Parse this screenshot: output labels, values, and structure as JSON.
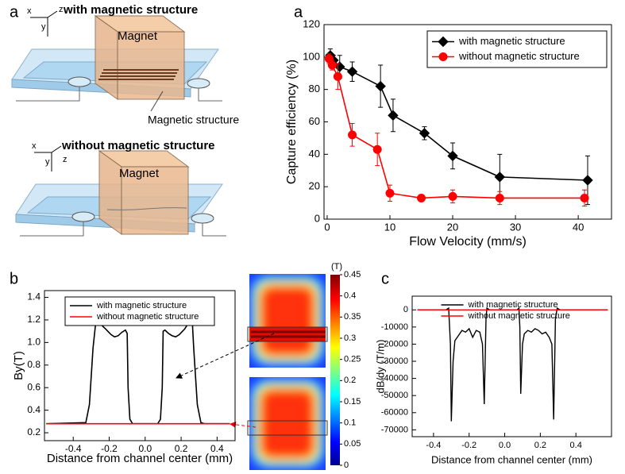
{
  "schematic": {
    "panel_label": "a",
    "devices": [
      {
        "title": "with magnetic structure",
        "magnet": "Magnet",
        "structure": "Magnetic structure",
        "axes": [
          "x",
          "y",
          "z"
        ]
      },
      {
        "title": "without magnetic structure",
        "magnet": "Magnet",
        "axes": [
          "x",
          "y",
          "z"
        ]
      }
    ]
  },
  "chart_data": [
    {
      "type": "line",
      "panel_label": "a",
      "xlabel": "Flow Velocity (mm/s)",
      "ylabel": "Capture efficiency (%)",
      "xlim": [
        -0.5,
        45.3
      ],
      "ylim": [
        0,
        120
      ],
      "xticks": [
        0,
        10,
        20,
        30,
        40
      ],
      "yticks": [
        0,
        20,
        40,
        60,
        80,
        100,
        120
      ],
      "legend": "upper right",
      "series": [
        {
          "name": "with magnetic structure",
          "color": "#000000",
          "marker": "diamond",
          "x": [
            0.5,
            1,
            2,
            4,
            8.5,
            10.5,
            15.5,
            20,
            27.5,
            41.5
          ],
          "values": [
            101,
            98,
            94,
            91,
            82,
            64,
            53,
            39,
            26,
            24
          ],
          "errors": [
            4,
            3,
            7,
            6,
            13,
            10,
            4,
            8,
            14,
            15
          ]
        },
        {
          "name": "without magnetic structure",
          "color": "#ff0000",
          "marker": "circle",
          "x": [
            0.3,
            0.8,
            1.7,
            4,
            8,
            10,
            15,
            20,
            27.5,
            41
          ],
          "values": [
            99,
            95,
            88,
            52,
            43,
            16,
            13,
            14,
            13,
            13
          ],
          "errors": [
            3,
            3,
            8,
            7,
            10,
            5,
            2,
            4,
            4,
            5
          ]
        }
      ]
    },
    {
      "type": "line",
      "panel_label": "b",
      "xlabel": "Distance from channel center (mm)",
      "ylabel": "By(T)",
      "xlim": [
        -0.56,
        0.5
      ],
      "ylim": [
        0.13,
        1.46
      ],
      "xticks": [
        -0.4,
        -0.2,
        {
          "value": 0,
          "label": "0.0"
        },
        0.2,
        0.4
      ],
      "yticks": [
        0.2,
        0.4,
        0.6,
        0.8,
        {
          "value": 1,
          "label": "1.0"
        },
        1.2,
        1.4
      ],
      "legend": "upper center",
      "colorbar": {
        "label": "(T)",
        "lim": [
          0,
          0.45
        ],
        "ticks": [
          0,
          0.05,
          0.1,
          0.15,
          0.2,
          0.25,
          0.3,
          0.35,
          0.4,
          0.45
        ]
      },
      "series": [
        {
          "name": "with magnetic structure",
          "color": "#000000",
          "x": [
            -0.55,
            -0.33,
            -0.31,
            -0.29,
            -0.27,
            -0.26,
            -0.24,
            -0.22,
            -0.19,
            -0.17,
            -0.15,
            -0.13,
            -0.11,
            -0.1,
            -0.095,
            -0.085,
            -0.07,
            0,
            0.07,
            0.085,
            0.095,
            0.1,
            0.11,
            0.13,
            0.15,
            0.17,
            0.19,
            0.22,
            0.24,
            0.26,
            0.27,
            0.29,
            0.31,
            0.33,
            0.47
          ],
          "values": [
            0.28,
            0.29,
            0.45,
            0.95,
            1.25,
            1.18,
            1.15,
            1.12,
            1.07,
            1.05,
            1.06,
            1.09,
            1.11,
            1.08,
            0.6,
            0.32,
            0.28,
            0.28,
            0.28,
            0.32,
            0.6,
            1.1,
            1.11,
            1.08,
            1.06,
            1.05,
            1.07,
            1.12,
            1.17,
            1.25,
            0.95,
            0.45,
            0.29,
            0.28,
            0.28
          ]
        },
        {
          "name": "without magnetic structure",
          "color": "#ff0000",
          "x": [
            -0.55,
            0.47
          ],
          "values": [
            0.28,
            0.28
          ]
        }
      ]
    },
    {
      "type": "line",
      "panel_label": "c",
      "xlabel": "Distance from channel center (mm)",
      "ylabel": "dB/dy (T/m)",
      "xlim": [
        -0.52,
        0.6
      ],
      "ylim": [
        -74000,
        8000
      ],
      "xticks": [
        -0.4,
        -0.2,
        {
          "value": 0,
          "label": "0.0"
        },
        0.2,
        0.4
      ],
      "yticks": [
        0,
        -10000,
        -20000,
        -30000,
        -40000,
        -50000,
        -60000,
        -70000
      ],
      "legend": "upper center",
      "series": [
        {
          "name": "with magnetic structure",
          "color": "#000000",
          "x": [
            -0.49,
            -0.33,
            -0.315,
            -0.305,
            -0.3,
            -0.29,
            -0.28,
            -0.26,
            -0.24,
            -0.22,
            -0.2,
            -0.18,
            -0.16,
            -0.14,
            -0.125,
            -0.115,
            -0.105,
            -0.1,
            -0.085,
            0.07,
            0.08,
            0.085,
            0.09,
            0.1,
            0.11,
            0.13,
            0.15,
            0.17,
            0.19,
            0.21,
            0.23,
            0.25,
            0.265,
            0.275,
            0.285,
            0.295,
            0.31,
            0.58
          ],
          "values": [
            0,
            0,
            1000,
            -20000,
            -65000,
            -30000,
            -18000,
            -15000,
            -12000,
            -13000,
            -11000,
            -16000,
            -12000,
            -13000,
            -20000,
            -55000,
            -5000,
            1000,
            0,
            0,
            1000,
            -10000,
            -49000,
            -20000,
            -14000,
            -12000,
            -13000,
            -11000,
            -12000,
            -14000,
            -13000,
            -16000,
            -20000,
            -64000,
            -5000,
            1000,
            0,
            0
          ]
        },
        {
          "name": "without magnetic structure",
          "color": "#ff0000",
          "x": [
            -0.49,
            0.58
          ],
          "values": [
            0,
            0
          ]
        }
      ]
    }
  ]
}
